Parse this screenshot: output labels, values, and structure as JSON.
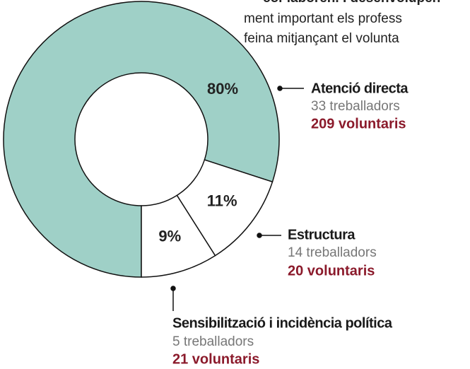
{
  "intro_lines": [
    "col·laboren. I desenvolupen",
    "ment important els profess",
    "feina mitjançant el volunta"
  ],
  "chart_data": {
    "type": "donut",
    "categories": [
      "Atenció directa",
      "Estructura",
      "Sensibilització i incidència política"
    ],
    "values": [
      80,
      11,
      9
    ],
    "value_labels": [
      "80%",
      "11%",
      "9%"
    ],
    "workers": [
      "33 treballadors",
      "14 treballadors",
      "5 treballadors"
    ],
    "volunteers": [
      "209 voluntaris",
      "20 voluntaris",
      "21 voluntaris"
    ],
    "colors": [
      "#9fd0c7",
      "#ffffff",
      "#ffffff"
    ]
  }
}
